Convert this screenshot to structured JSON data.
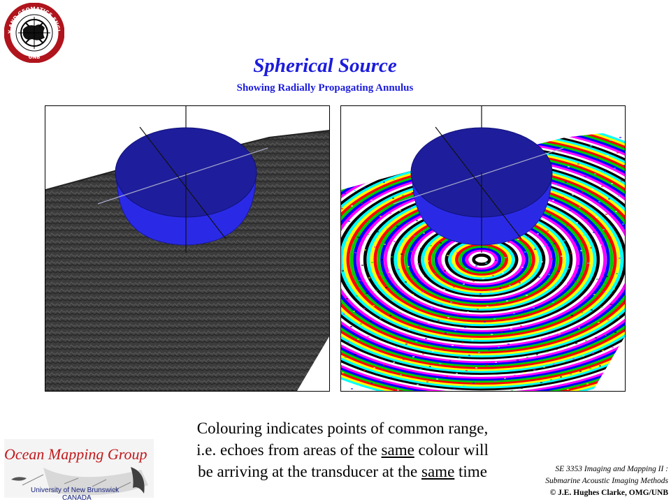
{
  "title": "Spherical Source",
  "subtitle": "Showing Radially Propagating Annulus",
  "seal": {
    "outer_text": "GEODESY AND GEOMATICS ENGINEERING",
    "bottom_text": "UNB"
  },
  "caption": {
    "line1": "Colouring indicates points of common range,",
    "line2_pre": "i.e. echoes from areas of the ",
    "line2_u": "same",
    "line2_post": " colour will",
    "line3_pre": "be arriving at the transducer at the ",
    "line3_u": "same",
    "line3_post": " time"
  },
  "logo": {
    "name": "Ocean Mapping Group",
    "university": "University of New Brunswick",
    "country": "CANADA"
  },
  "course": {
    "line1": "SE 3353 Imaging and Mapping II :",
    "line2": "Submarine Acoustic Imaging Methods",
    "copyright": "© J.E. Hughes Clarke, OMG/UNB"
  },
  "colors": {
    "title": "#1c1cdc",
    "hemisphere": "#2424d8",
    "seafloor_grey": "#3a3a3a",
    "logo_red": "#c2181c",
    "logo_blue": "#14207a",
    "ring_palette": [
      "#00ffff",
      "#ffff00",
      "#ff0000",
      "#00cc00",
      "#0000ff",
      "#ff00ff",
      "#ffffff",
      "#000000"
    ]
  },
  "panels": {
    "left": "grey-shaded seafloor with spherical source",
    "right": "range-coloured seafloor with spherical source"
  }
}
